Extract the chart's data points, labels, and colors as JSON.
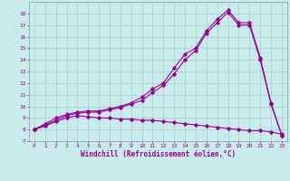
{
  "xlabel": "Windchill (Refroidissement éolien,°C)",
  "background_color": "#c8ecec",
  "line_color": "#990099",
  "grid_color": "#aaccaa",
  "xlim": [
    -0.5,
    23.5
  ],
  "ylim": [
    7,
    19
  ],
  "xticks": [
    0,
    1,
    2,
    3,
    4,
    5,
    6,
    7,
    8,
    9,
    10,
    11,
    12,
    13,
    14,
    15,
    16,
    17,
    18,
    19,
    20,
    21,
    22,
    23
  ],
  "yticks": [
    7,
    8,
    9,
    10,
    11,
    12,
    13,
    14,
    15,
    16,
    17,
    18
  ],
  "line1_x": [
    0,
    1,
    2,
    3,
    4,
    5,
    6,
    7,
    8,
    9,
    10,
    11,
    12,
    13,
    14,
    15,
    16,
    17,
    18,
    19,
    20,
    21,
    22,
    23
  ],
  "line1_y": [
    8.0,
    8.5,
    9.0,
    9.3,
    9.5,
    9.6,
    9.6,
    9.8,
    10.0,
    10.3,
    10.8,
    11.5,
    12.0,
    13.3,
    14.5,
    15.0,
    16.5,
    17.5,
    18.3,
    17.2,
    17.2,
    14.2,
    10.3,
    7.5
  ],
  "line2_x": [
    0,
    1,
    2,
    3,
    4,
    5,
    6,
    7,
    8,
    9,
    10,
    11,
    12,
    13,
    14,
    15,
    16,
    17,
    18,
    19,
    20,
    21,
    22,
    23
  ],
  "line2_y": [
    8.0,
    8.4,
    8.8,
    9.2,
    9.4,
    9.5,
    9.5,
    9.7,
    9.9,
    10.2,
    10.5,
    11.2,
    11.8,
    12.8,
    14.0,
    14.8,
    16.3,
    17.2,
    18.1,
    17.0,
    17.0,
    14.0,
    10.2,
    7.5
  ],
  "line3_x": [
    0,
    1,
    2,
    3,
    4,
    5,
    6,
    7,
    8,
    9,
    10,
    11,
    12,
    13,
    14,
    15,
    16,
    17,
    18,
    19,
    20,
    21,
    22,
    23
  ],
  "line3_y": [
    8.0,
    8.3,
    8.7,
    9.0,
    9.2,
    9.1,
    9.0,
    9.0,
    8.9,
    8.9,
    8.8,
    8.8,
    8.7,
    8.6,
    8.5,
    8.4,
    8.3,
    8.2,
    8.1,
    8.0,
    7.9,
    7.9,
    7.8,
    7.6
  ]
}
